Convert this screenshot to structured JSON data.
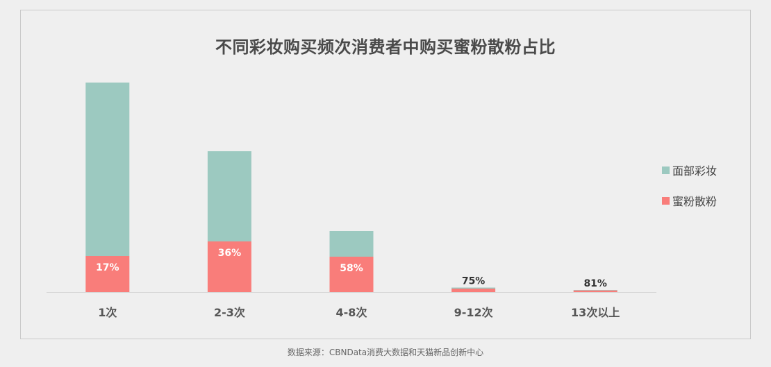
{
  "chart_data": {
    "type": "bar",
    "title": "不同彩妆购买频次消费者中购买蜜粉散粉占比",
    "categories": [
      "1次",
      "2-3次",
      "4-8次",
      "9-12次",
      "13次以上"
    ],
    "series": [
      {
        "name": "面部彩妆",
        "color": "#9cc9c0",
        "values": [
          250,
          130,
          37,
          1.5,
          0.6
        ]
      },
      {
        "name": "蜜粉散粉",
        "color": "#f97d7a",
        "values": [
          52,
          73,
          51,
          5,
          2.4
        ]
      }
    ],
    "data_labels": [
      "17%",
      "36%",
      "58%",
      "75%",
      "81%"
    ],
    "ylim": [
      0,
      310
    ],
    "grid": false,
    "legend_position": "right",
    "source": "数据来源：CBNData消费大数据和天猫新品创新中心"
  }
}
